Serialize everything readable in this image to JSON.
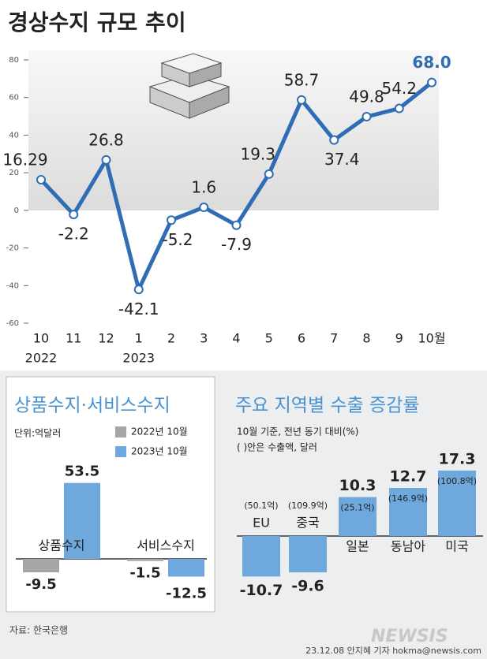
{
  "chart_data": [
    {
      "type": "line",
      "title": "경상수지 규모 추이",
      "categories": [
        "10",
        "11",
        "12",
        "1",
        "2",
        "3",
        "4",
        "5",
        "6",
        "7",
        "8",
        "9",
        "10월"
      ],
      "year_labels": [
        "2022",
        null,
        null,
        "2023",
        null,
        null,
        null,
        null,
        null,
        null,
        null,
        null,
        null
      ],
      "values": [
        16.29,
        -2.2,
        26.8,
        -42.1,
        -5.2,
        1.6,
        -7.9,
        19.3,
        58.7,
        37.4,
        49.8,
        54.2,
        68.0
      ],
      "value_labels": [
        "16.29",
        "-2.2",
        "26.8",
        "-42.1",
        "-5.2",
        "1.6",
        "-7.9",
        "19.3",
        "58.7",
        "37.4",
        "49.8",
        "54.2",
        "68.0"
      ],
      "color": "#2f6db5",
      "ylim": [
        -60,
        80
      ],
      "yticks": [
        -60,
        -40,
        -20,
        0,
        20,
        40,
        60,
        80
      ]
    },
    {
      "type": "bar",
      "title": "상품수지·서비스수지",
      "unit": "단위:억달러",
      "categories": [
        "상품수지",
        "서비스수지"
      ],
      "series": [
        {
          "name": "2022년 10월",
          "color": "#a6a6a6",
          "values": [
            -9.5,
            -1.5
          ]
        },
        {
          "name": "2023년 10월",
          "color": "#6fa8dc",
          "values": [
            53.5,
            -12.5
          ]
        }
      ]
    },
    {
      "type": "bar",
      "title": "주요 지역별 수출 증감률",
      "subtitle": "10월 기준, 전년 동기 대비(%)",
      "note": "( )안은 수출액, 달러",
      "categories": [
        "EU",
        "중국",
        "일본",
        "동남아",
        "미국"
      ],
      "sublabels": [
        "(50.1억)",
        "(109.9억)",
        "(25.1억)",
        "(146.9억)",
        "(100.8억)"
      ],
      "values": [
        -10.7,
        -9.6,
        10.3,
        12.7,
        17.3
      ],
      "color": "#6fa8dc"
    }
  ],
  "source": "자료: 한국은행",
  "watermark": "NEWSIS",
  "credit": "23.12.08 안지혜 기자 hokma@newsis.com"
}
